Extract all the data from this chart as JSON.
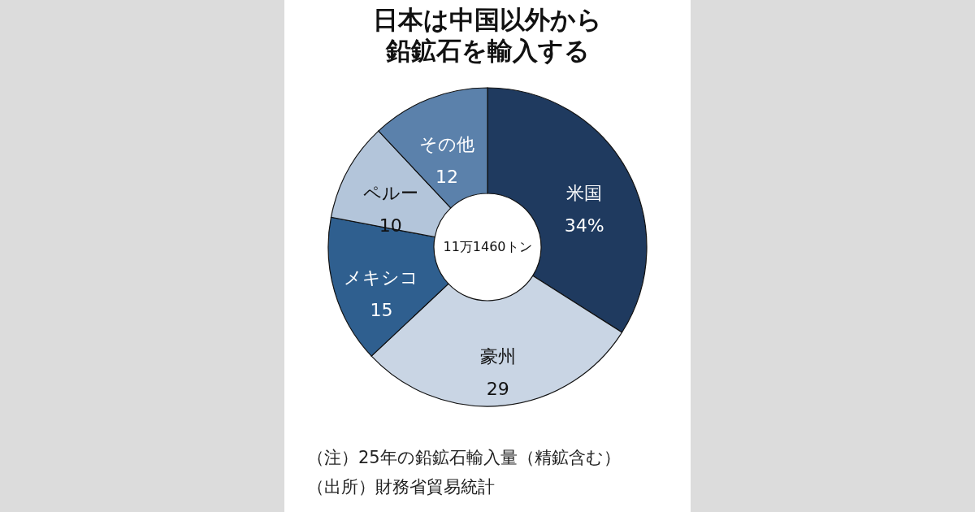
{
  "chart_data": {
    "type": "donut",
    "title": "日本は中国以外から鉛鉱石を輸入する",
    "categories": [
      "米国",
      "豪州",
      "メキシコ",
      "ペルー",
      "その他"
    ],
    "values": [
      34,
      29,
      15,
      10,
      12
    ],
    "value_labels": [
      "34%",
      "29",
      "15",
      "10",
      "12"
    ],
    "colors": [
      "#1f3a5f",
      "#c9d5e4",
      "#2f5f8f",
      "#b3c5da",
      "#5b81ab"
    ],
    "annotations": [
      "11万1460トン",
      "（注）25年の鉛鉱石輸入量（精鉱含む）",
      "（出所）財務省貿易統計"
    ],
    "legend": false
  }
}
